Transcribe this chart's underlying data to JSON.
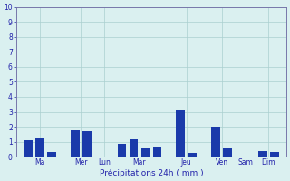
{
  "bar_data": [
    [
      1,
      1.1,
      "#1a3aaa"
    ],
    [
      2,
      1.2,
      "#1a3aaa"
    ],
    [
      3,
      0.3,
      "#1a3aaa"
    ],
    [
      5,
      1.75,
      "#1a3aaa"
    ],
    [
      6,
      1.7,
      "#1a3aaa"
    ],
    [
      9,
      0.85,
      "#1a3aaa"
    ],
    [
      10,
      1.15,
      "#1a3aaa"
    ],
    [
      11,
      0.55,
      "#1a3aaa"
    ],
    [
      12,
      0.65,
      "#1a3aaa"
    ],
    [
      14,
      3.1,
      "#1a3aaa"
    ],
    [
      15,
      0.25,
      "#1a3aaa"
    ],
    [
      17,
      2.0,
      "#1a3aaa"
    ],
    [
      18,
      0.55,
      "#1a3aaa"
    ],
    [
      21,
      0.35,
      "#1a3aaa"
    ],
    [
      22,
      0.3,
      "#1a3aaa"
    ]
  ],
  "day_labels": [
    "Ma",
    "Mer",
    "Lun",
    "Mar",
    "Jeu",
    "Ven",
    "Sam",
    "Dim"
  ],
  "day_tick_pos": [
    2.0,
    5.5,
    7.5,
    10.5,
    14.5,
    17.5,
    19.5,
    21.5
  ],
  "xlim": [
    0,
    23
  ],
  "ylim": [
    0,
    10
  ],
  "yticks": [
    0,
    1,
    2,
    3,
    4,
    5,
    6,
    7,
    8,
    9,
    10
  ],
  "xlabel": "Précipitations 24h ( mm )",
  "bg_color": "#daf0f0",
  "grid_color": "#aacfcf",
  "spine_color": "#7777aa",
  "label_color": "#2222aa",
  "bar_width": 0.75
}
